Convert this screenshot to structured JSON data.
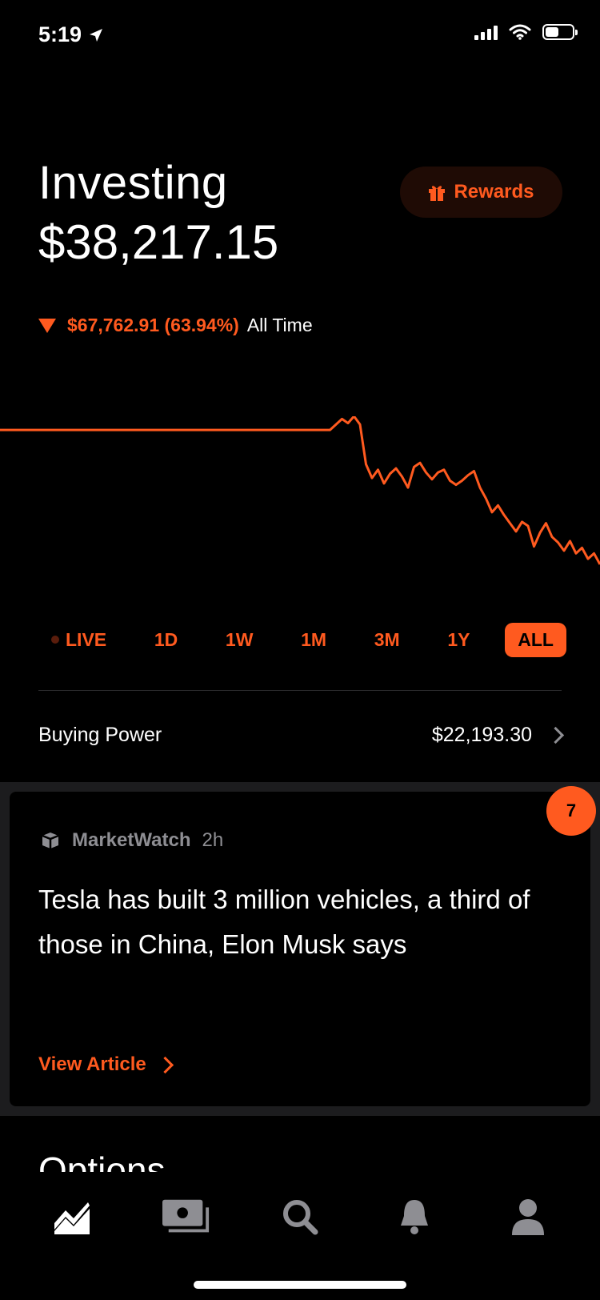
{
  "status_bar": {
    "time": "5:19",
    "location_icon": "location-arrow-icon",
    "signal_icon": "cellular-signal-icon",
    "wifi_icon": "wifi-icon",
    "battery_icon": "battery-icon"
  },
  "header": {
    "title": "Investing",
    "portfolio_value": "$38,217.15",
    "rewards_label": "Rewards",
    "change_amount": "$67,762.91 (63.94%)",
    "change_period": "All Time"
  },
  "colors": {
    "accent": "#ff5a1f",
    "background": "#000000",
    "card_band": "#1c1c1e",
    "muted": "#8e8e93"
  },
  "chart_data": {
    "type": "line",
    "x": [
      0,
      5,
      10,
      15,
      20,
      25,
      30,
      35,
      40,
      45,
      50,
      55,
      57,
      58,
      59,
      60,
      61,
      62,
      63,
      64,
      65,
      66,
      67,
      68,
      69,
      70,
      71,
      72,
      73,
      74,
      75,
      76,
      77,
      78,
      79,
      80,
      81,
      82,
      83,
      84,
      85,
      86,
      87,
      88,
      89,
      90,
      91,
      92,
      93,
      94,
      95,
      96,
      97,
      98,
      99,
      100
    ],
    "values": [
      100,
      100,
      100,
      100,
      100,
      100,
      100,
      100,
      100,
      100,
      100,
      100,
      108,
      105,
      110,
      104,
      75,
      65,
      71,
      61,
      68,
      72,
      66,
      58,
      73,
      76,
      69,
      64,
      69,
      71,
      63,
      60,
      63,
      67,
      70,
      58,
      50,
      40,
      45,
      38,
      32,
      26,
      33,
      30,
      15,
      25,
      32,
      22,
      18,
      12,
      19,
      10,
      14,
      6,
      10,
      2
    ],
    "series": [
      {
        "values": [
          100,
          100,
          100,
          100,
          100,
          100,
          100,
          100,
          100,
          100,
          100,
          100,
          108,
          105,
          110,
          104,
          75,
          65,
          71,
          61,
          68,
          72,
          66,
          58,
          73,
          76,
          69,
          64,
          69,
          71,
          63,
          60,
          63,
          67,
          70,
          58,
          50,
          40,
          45,
          38,
          32,
          26,
          33,
          30,
          15,
          25,
          32,
          22,
          18,
          12,
          19,
          10,
          14,
          6,
          10,
          2
        ]
      }
    ],
    "color": "#ff5a1f",
    "xlabel": "",
    "ylabel": "",
    "grid": false
  },
  "range_tabs": [
    {
      "label": "LIVE",
      "active": false
    },
    {
      "label": "1D",
      "active": false
    },
    {
      "label": "1W",
      "active": false
    },
    {
      "label": "1M",
      "active": false
    },
    {
      "label": "3M",
      "active": false
    },
    {
      "label": "1Y",
      "active": false
    },
    {
      "label": "ALL",
      "active": true
    }
  ],
  "buying_power": {
    "label": "Buying Power",
    "value": "$22,193.30"
  },
  "news": {
    "badge_count": "7",
    "source": "MarketWatch",
    "time": "2h",
    "headline": "Tesla has built 3 million vehicles, a third of those in China, Elon Musk says",
    "cta": "View Article"
  },
  "next_section_title": "Options",
  "tab_bar": [
    {
      "icon": "investing-chart-icon",
      "active": true
    },
    {
      "icon": "cash-card-icon",
      "active": false
    },
    {
      "icon": "search-icon",
      "active": false
    },
    {
      "icon": "bell-icon",
      "active": false
    },
    {
      "icon": "profile-icon",
      "active": false
    }
  ]
}
